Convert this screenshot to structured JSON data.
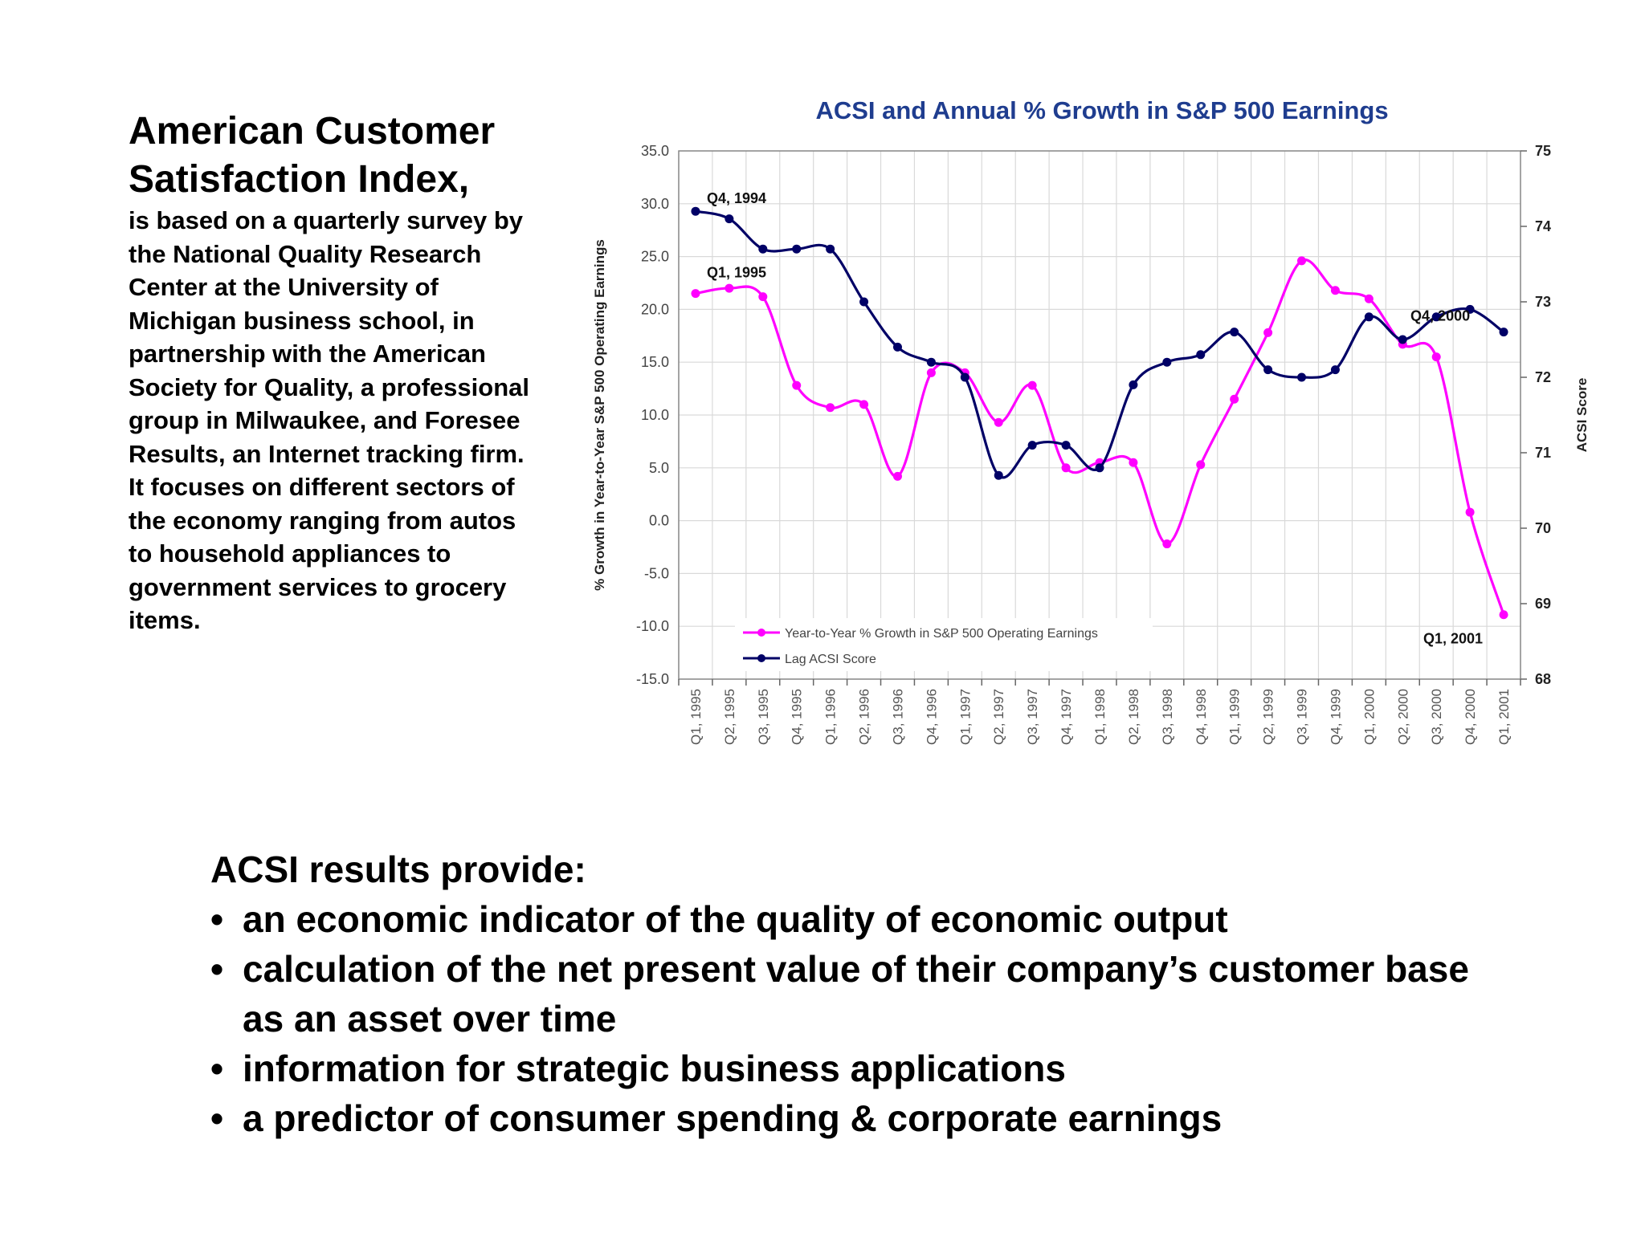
{
  "intro": {
    "heading": "American Customer Satisfaction Index,",
    "body": "is based on a quarterly survey by the National Quality Research Center at the University of Michigan business school, in partnership with the American Society for Quality, a professional group in Milwaukee, and Foresee Results, an Internet tracking firm. It focuses on different sectors of the economy ranging from autos to household appliances to government services to grocery items."
  },
  "summary": {
    "title": "ACSI results provide:",
    "bullet_char": "•",
    "items": [
      "an economic indicator of the quality of economic output",
      "calculation of the net present value of their company’s customer base as an asset over time",
      "information for strategic business applications",
      "a predictor of consumer spending & corporate earnings"
    ]
  },
  "chart_data": {
    "type": "line",
    "title": "ACSI and Annual % Growth in S&P 500 Earnings",
    "ylabel": "% Growth in Year-to-Year S&P 500 Operating Earnings",
    "y2label": "ACSI Score",
    "ylim": [
      -15,
      35
    ],
    "y2lim": [
      68,
      75
    ],
    "yticks": [
      "-15.0",
      "-10.0",
      "-5.0",
      "0.0",
      "5.0",
      "10.0",
      "15.0",
      "20.0",
      "25.0",
      "30.0",
      "35.0"
    ],
    "y2ticks": [
      "68",
      "69",
      "70",
      "71",
      "72",
      "73",
      "74",
      "75"
    ],
    "grid": true,
    "legend_position": "bottom-left",
    "categories": [
      "Q1, 1995",
      "Q2, 1995",
      "Q3, 1995",
      "Q4, 1995",
      "Q1, 1996",
      "Q2, 1996",
      "Q3, 1996",
      "Q4, 1996",
      "Q1, 1997",
      "Q2, 1997",
      "Q3, 1997",
      "Q4, 1997",
      "Q1, 1998",
      "Q2, 1998",
      "Q3, 1998",
      "Q4, 1998",
      "Q1, 1999",
      "Q2, 1999",
      "Q3, 1999",
      "Q4, 1999",
      "Q1, 2000",
      "Q2, 2000",
      "Q3, 2000",
      "Q4, 2000",
      "Q1, 2001"
    ],
    "series": [
      {
        "name": "Year-to-Year % Growth in S&P 500 Operating Earnings",
        "axis": "left",
        "color": "#ff00ff",
        "values": [
          21.5,
          22.0,
          21.2,
          12.8,
          10.7,
          11.0,
          4.2,
          14.0,
          14.0,
          9.3,
          12.8,
          5.0,
          5.5,
          5.5,
          -2.2,
          5.3,
          11.5,
          17.8,
          24.6,
          21.8,
          21.0,
          16.7,
          15.5,
          0.8,
          -8.9
        ]
      },
      {
        "name": "Lag ACSI Score",
        "axis": "right",
        "color": "#000066",
        "values": [
          74.2,
          74.1,
          73.7,
          73.7,
          73.7,
          73.0,
          72.4,
          72.2,
          72.0,
          70.7,
          71.1,
          71.1,
          70.8,
          71.9,
          72.2,
          72.3,
          72.6,
          72.1,
          72.0,
          72.1,
          72.8,
          72.5,
          72.8,
          72.9,
          72.6
        ]
      }
    ],
    "annotations": [
      {
        "text": "Q4, 1994",
        "series": 1,
        "index": 0
      },
      {
        "text": "Q1, 1995",
        "series": 0,
        "index": 0
      },
      {
        "text": "Q4, 2000",
        "series": 1,
        "index": 23
      },
      {
        "text": "Q1, 2001",
        "series": 0,
        "index": 24
      }
    ]
  }
}
